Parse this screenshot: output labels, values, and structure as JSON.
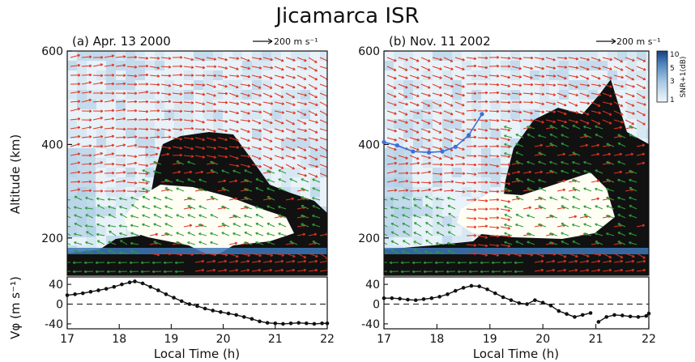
{
  "title": "Jicamarca ISR",
  "colors": {
    "eastward_arrow": "#e0331f",
    "westward_arrow": "#2e9a3a",
    "snr_low": "#e8f2f8",
    "snr_high": "#1c4f8c",
    "plasma_depletion": "#111111",
    "bubble_core": "#fffef4",
    "marker_line": "#3b6fd6"
  },
  "vector_scale_label": "200 m s⁻¹",
  "colorbar": {
    "label": "SNR+1(dB)",
    "ticks": [
      "10",
      "5",
      "3",
      "1"
    ]
  },
  "chart_data": [
    {
      "type": "heatmap",
      "panel_label": "(a) Apr. 13 2000",
      "ylabel": "Altitude (km)",
      "xlabel": "",
      "xlim": [
        17,
        22
      ],
      "ylim": [
        120,
        600
      ],
      "yticks": [
        "200",
        "400",
        "600"
      ],
      "xticks": [
        "17",
        "18",
        "19",
        "20",
        "21",
        "22"
      ],
      "depletion_region": "eastward drifts (red) above ~300 km after 18.3 LT; westward (green) drifts inside plasma depletion below ~400 km"
    },
    {
      "type": "line",
      "panel_label": "",
      "ylabel": "Vφ (m s⁻¹)",
      "xlabel": "Local Time (h)",
      "xlim": [
        17,
        22
      ],
      "ylim": [
        -50,
        55
      ],
      "yticks": [
        "40",
        "0",
        "-40"
      ],
      "xticks": [
        "17",
        "18",
        "19",
        "20",
        "21",
        "22"
      ],
      "x": [
        17.0,
        17.15,
        17.3,
        17.45,
        17.6,
        17.75,
        17.9,
        18.05,
        18.2,
        18.3,
        18.45,
        18.6,
        18.75,
        18.9,
        19.05,
        19.2,
        19.35,
        19.5,
        19.65,
        19.8,
        19.95,
        20.1,
        20.25,
        20.4,
        20.55,
        20.7,
        20.85,
        21.0,
        21.15,
        21.3,
        21.45,
        21.6,
        21.75,
        21.9,
        22.0
      ],
      "values": [
        18,
        20,
        22,
        25,
        28,
        31,
        35,
        40,
        44,
        46,
        42,
        35,
        28,
        20,
        13,
        6,
        0,
        -4,
        -9,
        -13,
        -16,
        -19,
        -22,
        -26,
        -30,
        -35,
        -38,
        -39,
        -40,
        -39,
        -38,
        -39,
        -40,
        -39,
        -39
      ]
    },
    {
      "type": "heatmap",
      "panel_label": "(b) Nov. 11 2002",
      "ylabel": "",
      "xlabel": "",
      "xlim": [
        17,
        22
      ],
      "ylim": [
        120,
        600
      ],
      "yticks": [
        "200",
        "400",
        "600"
      ],
      "xticks": [
        "17",
        "18",
        "19",
        "20",
        "21",
        "22"
      ],
      "marker_line": {
        "x": [
          17.0,
          17.25,
          17.55,
          17.85,
          18.1,
          18.35,
          18.6,
          18.85
        ],
        "y": [
          405,
          398,
          385,
          383,
          385,
          395,
          420,
          465
        ]
      }
    },
    {
      "type": "line",
      "panel_label": "",
      "ylabel": "",
      "xlabel": "Local Time (h)",
      "xlim": [
        17,
        22
      ],
      "ylim": [
        -50,
        55
      ],
      "yticks": [
        "40",
        "0",
        "-40"
      ],
      "xticks": [
        "17",
        "18",
        "19",
        "20",
        "21",
        "22"
      ],
      "x": [
        17.0,
        17.15,
        17.3,
        17.45,
        17.6,
        17.75,
        17.9,
        18.05,
        18.2,
        18.35,
        18.5,
        18.65,
        18.8,
        18.95,
        19.1,
        19.25,
        19.4,
        19.55,
        19.7,
        19.85,
        20.0,
        20.15,
        20.3,
        20.45,
        20.6,
        20.75,
        20.9
      ],
      "values": [
        12,
        12,
        11,
        9,
        8,
        10,
        12,
        15,
        20,
        27,
        33,
        37,
        36,
        30,
        22,
        14,
        8,
        2,
        0,
        8,
        3,
        -3,
        -14,
        -20,
        -26,
        -22,
        -18
      ],
      "x2": [
        21.05,
        21.2,
        21.35,
        21.5,
        21.65,
        21.8,
        21.95,
        22.0
      ],
      "values2": [
        -36,
        -26,
        -22,
        -23,
        -25,
        -26,
        -24,
        -19
      ]
    }
  ]
}
